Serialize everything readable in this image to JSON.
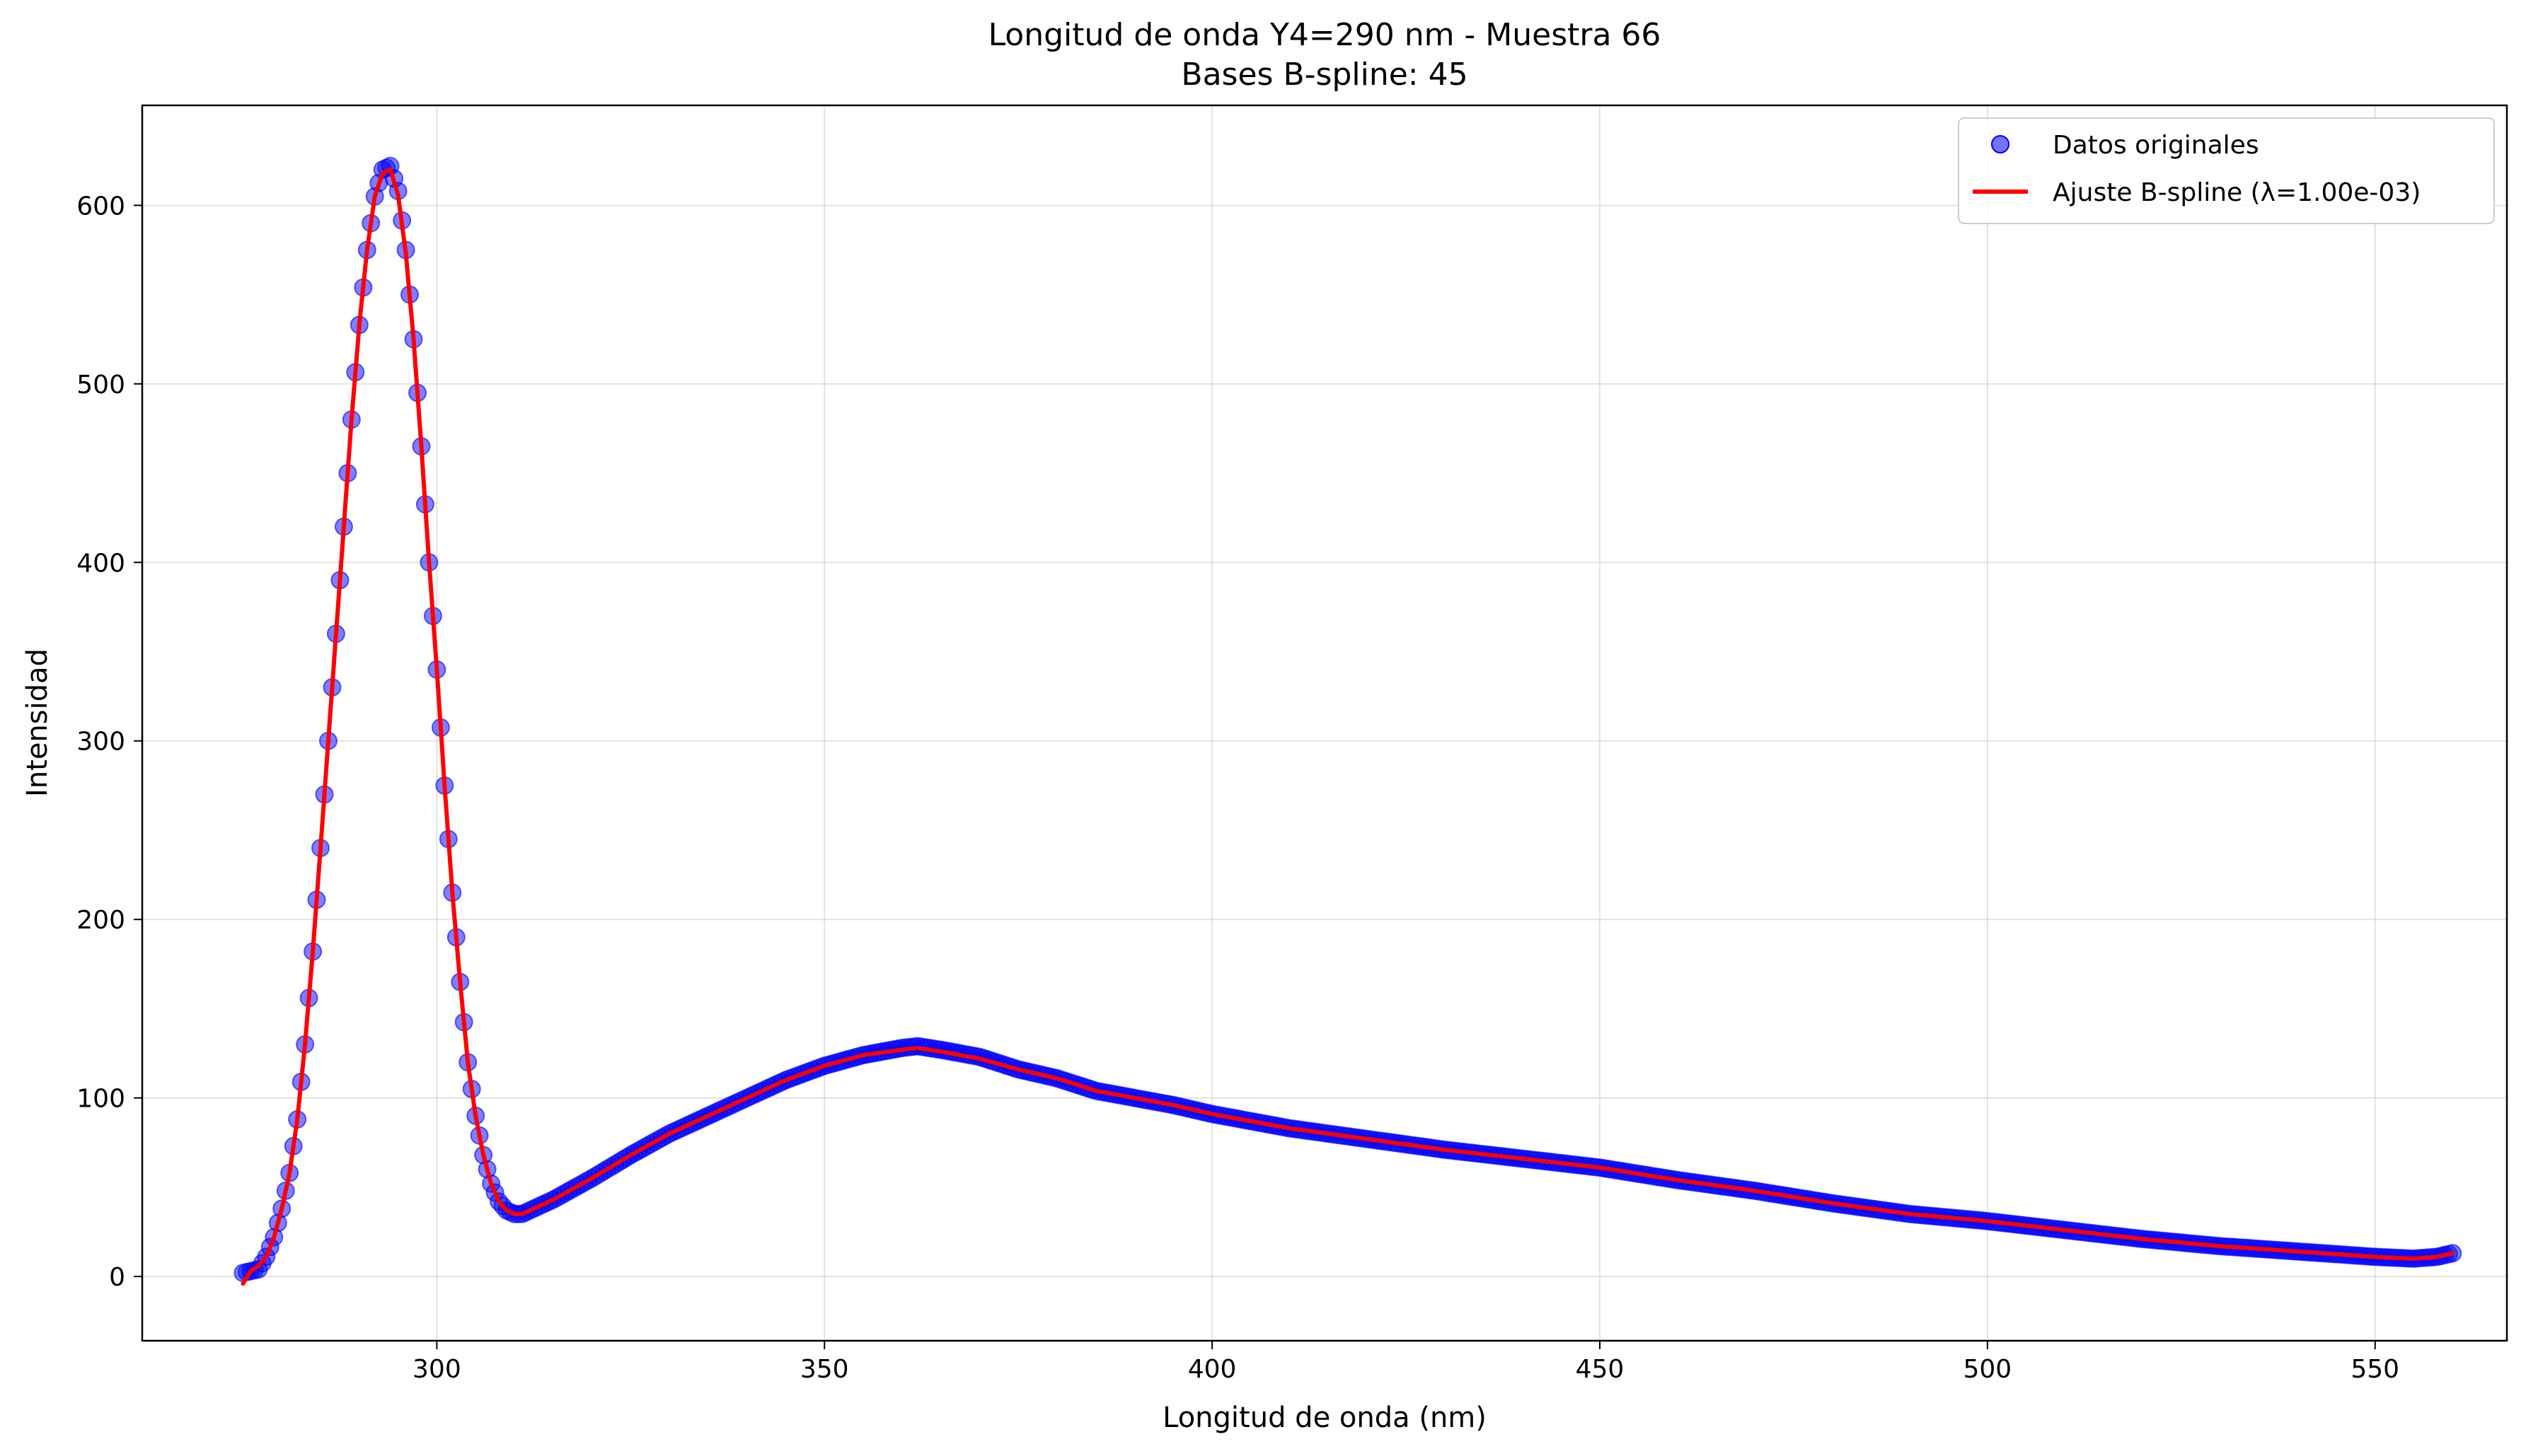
{
  "chart_data": {
    "type": "scatter",
    "title": "Longitud de onda Y4=290 nm - Muestra 66",
    "subtitle": "Bases B-spline: 45",
    "xlabel": "Longitud de onda (nm)",
    "ylabel": "Intensidad",
    "xlim": [
      262,
      567
    ],
    "ylim": [
      -36,
      656
    ],
    "xticks": [
      300,
      350,
      400,
      450,
      500,
      550
    ],
    "yticks": [
      0,
      100,
      200,
      300,
      400,
      500,
      600
    ],
    "xtick_labels": [
      "300",
      "350",
      "400",
      "450",
      "500",
      "550"
    ],
    "ytick_labels": [
      "0",
      "100",
      "200",
      "300",
      "400",
      "500",
      "600"
    ],
    "grid": true,
    "legend_position": "top-right",
    "colors": {
      "points": "#0000ff",
      "fit": "#ff0000"
    },
    "series": [
      {
        "name": "Datos originales",
        "kind": "scatter",
        "x_start": 275,
        "x_end": 560,
        "x_step": 0.5,
        "profile": [
          [
            275,
            2
          ],
          [
            276,
            3
          ],
          [
            277,
            4
          ],
          [
            278,
            11
          ],
          [
            279,
            22
          ],
          [
            280,
            38
          ],
          [
            281,
            58
          ],
          [
            282,
            88
          ],
          [
            283,
            130
          ],
          [
            284,
            182
          ],
          [
            285,
            240
          ],
          [
            286,
            300
          ],
          [
            287,
            360
          ],
          [
            288,
            420
          ],
          [
            289,
            480
          ],
          [
            290,
            533
          ],
          [
            291,
            575
          ],
          [
            292,
            605
          ],
          [
            293,
            620
          ],
          [
            294,
            622
          ],
          [
            295,
            608
          ],
          [
            296,
            575
          ],
          [
            297,
            525
          ],
          [
            298,
            465
          ],
          [
            299,
            400
          ],
          [
            300,
            340
          ],
          [
            301,
            275
          ],
          [
            302,
            215
          ],
          [
            303,
            165
          ],
          [
            304,
            120
          ],
          [
            305,
            90
          ],
          [
            306,
            68
          ],
          [
            307,
            52
          ],
          [
            308,
            42
          ],
          [
            309,
            37
          ],
          [
            310,
            35
          ],
          [
            311,
            35
          ],
          [
            312,
            37
          ],
          [
            315,
            43
          ],
          [
            320,
            55
          ],
          [
            325,
            68
          ],
          [
            330,
            80
          ],
          [
            335,
            90
          ],
          [
            340,
            100
          ],
          [
            345,
            110
          ],
          [
            350,
            118
          ],
          [
            355,
            124
          ],
          [
            360,
            128
          ],
          [
            362,
            129
          ],
          [
            365,
            127
          ],
          [
            370,
            123
          ],
          [
            375,
            116
          ],
          [
            380,
            111
          ],
          [
            385,
            104
          ],
          [
            390,
            100
          ],
          [
            395,
            96
          ],
          [
            400,
            91
          ],
          [
            410,
            83
          ],
          [
            420,
            77
          ],
          [
            430,
            71
          ],
          [
            440,
            66
          ],
          [
            450,
            61
          ],
          [
            460,
            54
          ],
          [
            470,
            48
          ],
          [
            480,
            41
          ],
          [
            490,
            35
          ],
          [
            500,
            31
          ],
          [
            510,
            26
          ],
          [
            520,
            21
          ],
          [
            530,
            17
          ],
          [
            540,
            14
          ],
          [
            550,
            11
          ],
          [
            555,
            10
          ],
          [
            558,
            11
          ],
          [
            560,
            13
          ]
        ]
      },
      {
        "name": "Ajuste B-spline (λ=1.00e-03)",
        "kind": "line",
        "x_start": 275,
        "x_end": 560,
        "x_step": 0.25,
        "profile": [
          [
            275,
            -4
          ],
          [
            276,
            3
          ],
          [
            277,
            6
          ],
          [
            278,
            11
          ],
          [
            279,
            22
          ],
          [
            280,
            38
          ],
          [
            281,
            58
          ],
          [
            282,
            88
          ],
          [
            283,
            130
          ],
          [
            284,
            182
          ],
          [
            285,
            240
          ],
          [
            286,
            300
          ],
          [
            287,
            360
          ],
          [
            288,
            420
          ],
          [
            289,
            480
          ],
          [
            290,
            533
          ],
          [
            291,
            575
          ],
          [
            292,
            605
          ],
          [
            293,
            618
          ],
          [
            294,
            620
          ],
          [
            295,
            606
          ],
          [
            296,
            573
          ],
          [
            297,
            525
          ],
          [
            298,
            465
          ],
          [
            299,
            400
          ],
          [
            300,
            340
          ],
          [
            301,
            275
          ],
          [
            302,
            215
          ],
          [
            303,
            165
          ],
          [
            304,
            120
          ],
          [
            305,
            90
          ],
          [
            306,
            68
          ],
          [
            307,
            52
          ],
          [
            308,
            42
          ],
          [
            309,
            37
          ],
          [
            310,
            35
          ],
          [
            311,
            35
          ],
          [
            312,
            37
          ],
          [
            315,
            43
          ],
          [
            320,
            55
          ],
          [
            325,
            68
          ],
          [
            330,
            80
          ],
          [
            335,
            90
          ],
          [
            340,
            100
          ],
          [
            345,
            110
          ],
          [
            350,
            118
          ],
          [
            355,
            124
          ],
          [
            360,
            127
          ],
          [
            362,
            128
          ],
          [
            365,
            126
          ],
          [
            370,
            122
          ],
          [
            375,
            116
          ],
          [
            380,
            111
          ],
          [
            385,
            104
          ],
          [
            390,
            100
          ],
          [
            395,
            96
          ],
          [
            400,
            91
          ],
          [
            410,
            83
          ],
          [
            420,
            77
          ],
          [
            430,
            71
          ],
          [
            440,
            66
          ],
          [
            450,
            61
          ],
          [
            460,
            54
          ],
          [
            470,
            48
          ],
          [
            480,
            41
          ],
          [
            490,
            35
          ],
          [
            500,
            31
          ],
          [
            510,
            26
          ],
          [
            520,
            21
          ],
          [
            530,
            17
          ],
          [
            540,
            14
          ],
          [
            550,
            11
          ],
          [
            555,
            10
          ],
          [
            558,
            11
          ],
          [
            560,
            13
          ]
        ]
      }
    ]
  }
}
